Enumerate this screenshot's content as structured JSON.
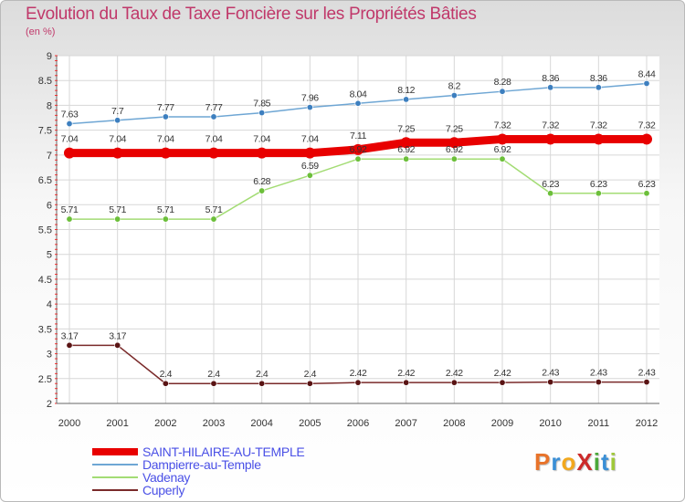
{
  "title": "Evolution du Taux de Taxe Foncière sur les Propriétés Bâties",
  "unit_label": "(en %)",
  "logo": {
    "text": "ProXiti",
    "letters": [
      "P",
      "r",
      "o",
      "X",
      "i",
      "t",
      "i"
    ],
    "colors": [
      "#e8732a",
      "#3a8fd6",
      "#f2a81d",
      "#cc2a2a",
      "#4aa83a",
      "#3a8fd6",
      "#a0c83a"
    ]
  },
  "chart_data": {
    "type": "line",
    "title": "Evolution du Taux de Taxe Foncière sur les Propriétés Bâties",
    "ylabel": "(en %)",
    "xlabel": "",
    "x": [
      "2000",
      "2001",
      "2002",
      "2003",
      "2004",
      "2005",
      "2006",
      "2007",
      "2008",
      "2009",
      "2010",
      "2011",
      "2012"
    ],
    "ylim": [
      2,
      9
    ],
    "yticks": [
      "2",
      "2.5",
      "3",
      "3.5",
      "4",
      "4.5",
      "5",
      "5.5",
      "6",
      "6.5",
      "7",
      "7.5",
      "8",
      "8.5",
      "9"
    ],
    "grid": true,
    "legend_position": "bottom-left",
    "series": [
      {
        "name": "SAINT-HILAIRE-AU-TEMPLE",
        "color": "#e80000",
        "emphasis": true,
        "values": [
          7.04,
          7.04,
          7.04,
          7.04,
          7.04,
          7.04,
          7.11,
          7.25,
          7.25,
          7.32,
          7.32,
          7.32,
          7.32
        ],
        "labels": [
          "7.04",
          "7.04",
          "7.04",
          "7.04",
          "7.04",
          "7.04",
          "7.11",
          "7.25",
          "7.25",
          "7.32",
          "7.32",
          "7.32",
          "7.32"
        ]
      },
      {
        "name": "Dampierre-au-Temple",
        "color": "#6ea6d4",
        "marker": "#3d7fbf",
        "values": [
          7.63,
          7.7,
          7.77,
          7.77,
          7.85,
          7.96,
          8.04,
          8.12,
          8.2,
          8.28,
          8.36,
          8.36,
          8.44
        ],
        "labels": [
          "7.63",
          "7.7",
          "7.77",
          "7.77",
          "7.85",
          "7.96",
          "8.04",
          "8.12",
          "8.2",
          "8.28",
          "8.36",
          "8.36",
          "8.44"
        ]
      },
      {
        "name": "Vadenay",
        "color": "#a3dc74",
        "marker": "#6cbf3a",
        "values": [
          5.71,
          5.71,
          5.71,
          5.71,
          6.28,
          6.59,
          6.92,
          6.92,
          6.92,
          6.92,
          6.23,
          6.23,
          6.23
        ],
        "labels": [
          "5.71",
          "5.71",
          "5.71",
          "5.71",
          "6.28",
          "6.59",
          "6.92",
          "6.92",
          "6.92",
          "6.92",
          "6.23",
          "6.23",
          "6.23"
        ]
      },
      {
        "name": "Cuperly",
        "color": "#7a2a2a",
        "marker": "#5a1414",
        "values": [
          3.17,
          3.17,
          2.4,
          2.4,
          2.4,
          2.4,
          2.42,
          2.42,
          2.42,
          2.42,
          2.43,
          2.43,
          2.43
        ],
        "labels": [
          "3.17",
          "3.17",
          "2.4",
          "2.4",
          "2.4",
          "2.4",
          "2.42",
          "2.42",
          "2.42",
          "2.42",
          "2.43",
          "2.43",
          "2.43"
        ]
      }
    ]
  }
}
